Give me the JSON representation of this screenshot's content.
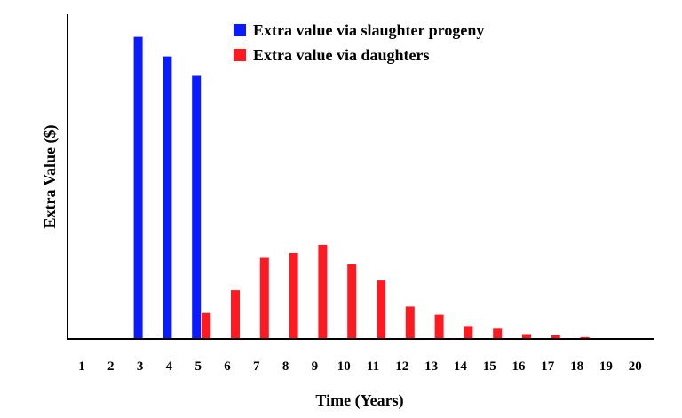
{
  "chart_data": {
    "type": "bar",
    "title": "",
    "xlabel": "Time (Years)",
    "ylabel": "Extra Value ($)",
    "categories": [
      "1",
      "2",
      "3",
      "4",
      "5",
      "6",
      "7",
      "8",
      "9",
      "10",
      "11",
      "12",
      "13",
      "14",
      "15",
      "16",
      "17",
      "18",
      "19",
      "20"
    ],
    "ylim": [
      0,
      100
    ],
    "grid": false,
    "legend_position": "top-right",
    "y_tick_labels": false,
    "series": [
      {
        "name": "Extra value via slaughter progeny",
        "color": "#0a1cff",
        "values": [
          0,
          0,
          93,
          87,
          81,
          0,
          0,
          0,
          0,
          0,
          0,
          0,
          0,
          0,
          0,
          0,
          0,
          0,
          0,
          0
        ]
      },
      {
        "name": "Extra value via daughters",
        "color": "#ff1a22",
        "values": [
          0,
          0,
          0,
          0,
          8,
          15,
          25,
          26.5,
          29,
          23,
          18,
          10,
          7.5,
          4,
          3.2,
          1.5,
          1.2,
          0.6,
          0,
          0
        ]
      }
    ]
  }
}
